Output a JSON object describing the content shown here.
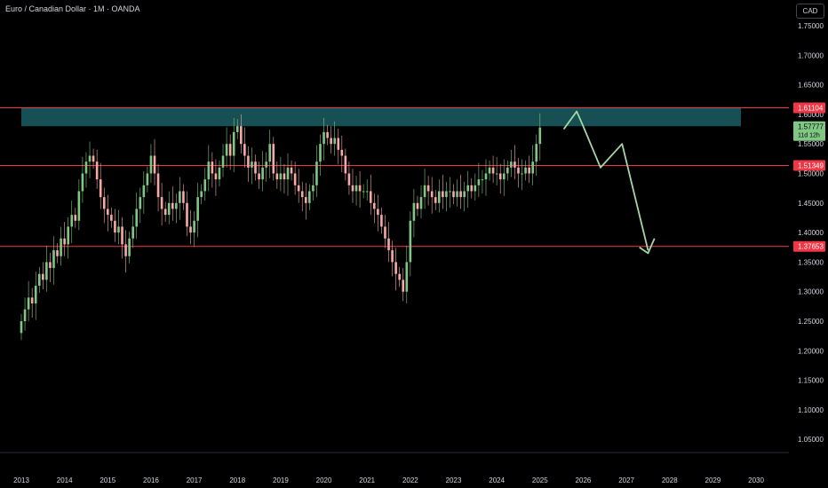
{
  "header": {
    "title": "Euro / Canadian Dollar · 1M · OANDA",
    "currency": "CAD"
  },
  "colors": {
    "background": "#000000",
    "bull": "#81c784",
    "bear": "#f7a9a7",
    "level_line": "#f23645",
    "zone_fill": "#1b5e63",
    "projection": "#a5d6a7",
    "axis_text": "#d1d4dc"
  },
  "chart_data": {
    "type": "candlestick",
    "x_ticks": [
      "2013",
      "2014",
      "2015",
      "2016",
      "2017",
      "2018",
      "2019",
      "2020",
      "2021",
      "2022",
      "2023",
      "2024",
      "2025",
      "2026",
      "2027",
      "2028",
      "2029",
      "2030"
    ],
    "y_ticks": [
      "1.75000",
      "1.70000",
      "1.65000",
      "1.60000",
      "1.55000",
      "1.50000",
      "1.45000",
      "1.40000",
      "1.35000",
      "1.30000",
      "1.25000",
      "1.20000",
      "1.15000",
      "1.10000",
      "1.05000"
    ],
    "ylim": [
      1.02,
      1.79
    ],
    "horizontal_levels": [
      {
        "value": 1.61104,
        "label": "1.61104"
      },
      {
        "value": 1.51349,
        "label": "1.51349"
      },
      {
        "value": 1.37653,
        "label": "1.37653"
      }
    ],
    "resistance_zone": {
      "from": 1.58,
      "to": 1.61104,
      "x_start": 2013.0,
      "x_end": 2029.65
    },
    "last_price": {
      "value": 1.57777,
      "label": "1.57777",
      "countdown": "11d 12h"
    },
    "projection_path": [
      {
        "x": 2025.55,
        "y": 1.575
      },
      {
        "x": 2025.85,
        "y": 1.605
      },
      {
        "x": 2026.0,
        "y": 1.58
      },
      {
        "x": 2026.4,
        "y": 1.51
      },
      {
        "x": 2026.9,
        "y": 1.55
      },
      {
        "x": 2027.5,
        "y": 1.37
      }
    ],
    "projection_arrow": [
      {
        "x": 2027.3,
        "y": 1.375
      },
      {
        "x": 2027.5,
        "y": 1.365
      },
      {
        "x": 2027.65,
        "y": 1.39
      }
    ],
    "candles_anchor": {
      "start_year": 2013.0,
      "start_close": 1.23
    },
    "closes": [
      1.25,
      1.27,
      1.29,
      1.28,
      1.31,
      1.33,
      1.32,
      1.35,
      1.34,
      1.37,
      1.36,
      1.39,
      1.38,
      1.41,
      1.43,
      1.42,
      1.47,
      1.5,
      1.52,
      1.53,
      1.52,
      1.49,
      1.46,
      1.44,
      1.43,
      1.42,
      1.4,
      1.41,
      1.38,
      1.36,
      1.39,
      1.41,
      1.44,
      1.46,
      1.48,
      1.5,
      1.53,
      1.5,
      1.46,
      1.44,
      1.43,
      1.45,
      1.44,
      1.45,
      1.47,
      1.45,
      1.41,
      1.4,
      1.42,
      1.46,
      1.47,
      1.49,
      1.52,
      1.5,
      1.49,
      1.51,
      1.53,
      1.55,
      1.53,
      1.57,
      1.58,
      1.55,
      1.53,
      1.51,
      1.52,
      1.5,
      1.49,
      1.51,
      1.52,
      1.55,
      1.5,
      1.49,
      1.5,
      1.49,
      1.51,
      1.5,
      1.48,
      1.47,
      1.46,
      1.45,
      1.47,
      1.48,
      1.52,
      1.55,
      1.57,
      1.56,
      1.55,
      1.56,
      1.54,
      1.53,
      1.5,
      1.48,
      1.47,
      1.48,
      1.47,
      1.47,
      1.47,
      1.45,
      1.44,
      1.43,
      1.41,
      1.39,
      1.37,
      1.35,
      1.33,
      1.32,
      1.3,
      1.35,
      1.42,
      1.45,
      1.44,
      1.46,
      1.48,
      1.47,
      1.46,
      1.45,
      1.47,
      1.46,
      1.47,
      1.47,
      1.46,
      1.47,
      1.46,
      1.47,
      1.48,
      1.47,
      1.48,
      1.49,
      1.49,
      1.5,
      1.51,
      1.5,
      1.5,
      1.49,
      1.5,
      1.51,
      1.52,
      1.51,
      1.5,
      1.5,
      1.51,
      1.5,
      1.52,
      1.55,
      1.57777
    ]
  }
}
